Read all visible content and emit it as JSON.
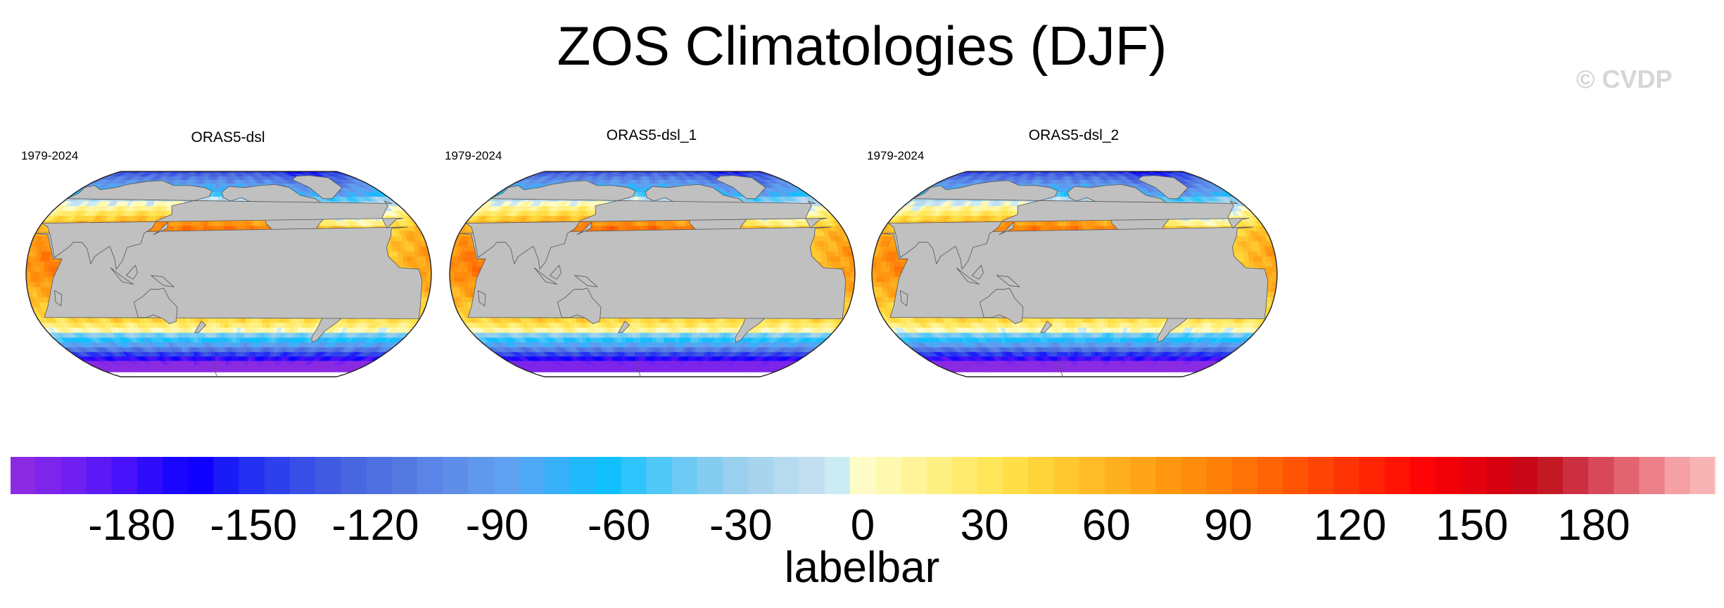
{
  "chart_data": {
    "type": "heatmap",
    "title": "ZOS Climatologies (DJF)",
    "watermark": "© CVDP",
    "panels": [
      {
        "name": "ORAS5-dsl",
        "period": "1979-2024"
      },
      {
        "name": "ORAS5-dsl_1",
        "period": "1979-2024"
      },
      {
        "name": "ORAS5-dsl_2",
        "period": "1979-2024"
      }
    ],
    "colorbar": {
      "label": "labelbar",
      "range": [
        -210,
        210
      ],
      "ticks": [
        -180,
        -150,
        -120,
        -90,
        -60,
        -30,
        0,
        30,
        60,
        90,
        120,
        150,
        180
      ],
      "tick_labels": [
        "-180",
        "-150",
        "-120",
        "-90",
        "-60",
        "-30",
        "0",
        "30",
        "60",
        "90",
        "120",
        "150",
        "180"
      ],
      "colors": [
        "#8a2be2",
        "#7d25ea",
        "#6f1ff0",
        "#5c18f5",
        "#4712f9",
        "#300cfc",
        "#1a06fe",
        "#1000ff",
        "#1a1cf8",
        "#2430f2",
        "#2e40ec",
        "#384ee6",
        "#405ae2",
        "#4766e0",
        "#4e70e0",
        "#547ae2",
        "#5a84e6",
        "#5e8ee8",
        "#6098ec",
        "#60a0f0",
        "#4ea8f6",
        "#38b0fa",
        "#22b8fc",
        "#10c0ff",
        "#30c4fc",
        "#50c8f8",
        "#6ccaf4",
        "#84ccf0",
        "#98d0ee",
        "#a8d4ee",
        "#b6daf0",
        "#c2dff2",
        "#ccecf4",
        "#fffcc8",
        "#fff8b0",
        "#fff49a",
        "#fff084",
        "#ffec6e",
        "#ffe65a",
        "#ffde48",
        "#ffd43a",
        "#ffc830",
        "#ffbc28",
        "#ffb020",
        "#ffa418",
        "#ff9810",
        "#ff8c0c",
        "#ff8008",
        "#ff7206",
        "#ff6404",
        "#ff5404",
        "#ff4404",
        "#ff3404",
        "#ff2404",
        "#ff1404",
        "#ff0404",
        "#f20008",
        "#e4000c",
        "#d60010",
        "#c80818",
        "#c41824",
        "#cc3040",
        "#d84858",
        "#e26470",
        "#ec8088",
        "#f4a0a4",
        "#f8b4b4"
      ],
      "land_color": "#c0c0c0"
    }
  }
}
